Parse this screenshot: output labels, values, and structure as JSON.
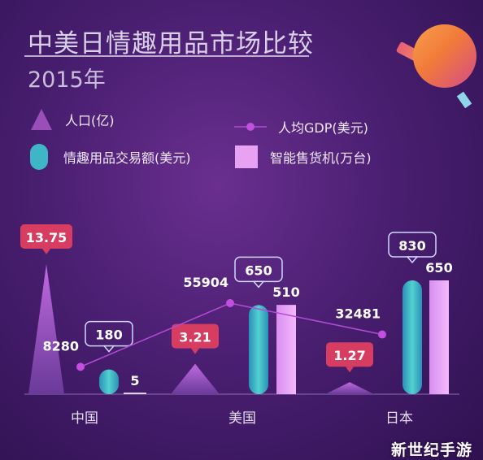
{
  "title": "中美日情趣用品市场比较",
  "subtitle": "2015年",
  "legend": {
    "population": "人口(亿)",
    "gdp": "人均GDP(美元)",
    "trade": "情趣用品交易额(美元)",
    "vending": "智能售货机(万台)"
  },
  "colors": {
    "population": "#9a4fb8",
    "gdp": "#b44bd6",
    "trade": "#3fb6c8",
    "vending": "#e7a2f4",
    "pop_label_bg": "#d63d60",
    "bubble_border": "#cfd6ff"
  },
  "watermark": "新世纪手游",
  "chart_data": {
    "type": "bar",
    "categories": [
      "中国",
      "美国",
      "日本"
    ],
    "series": [
      {
        "key": "population",
        "name": "人口(亿)",
        "values": [
          13.75,
          3.21,
          1.27
        ],
        "labels": [
          "13.75",
          "3.21",
          "1.27"
        ]
      },
      {
        "key": "gdp",
        "name": "人均GDP(美元)",
        "values": [
          8280,
          55904,
          32481
        ],
        "labels": [
          "8280",
          "55904",
          "32481"
        ]
      },
      {
        "key": "trade",
        "name": "情趣用品交易额(美元)",
        "values": [
          180,
          650,
          830
        ],
        "labels": [
          "180",
          "650",
          "830"
        ]
      },
      {
        "key": "vending",
        "name": "智能售货机(万台)",
        "values": [
          5,
          510,
          650
        ],
        "labels": [
          "5",
          "510",
          "650"
        ]
      }
    ]
  }
}
